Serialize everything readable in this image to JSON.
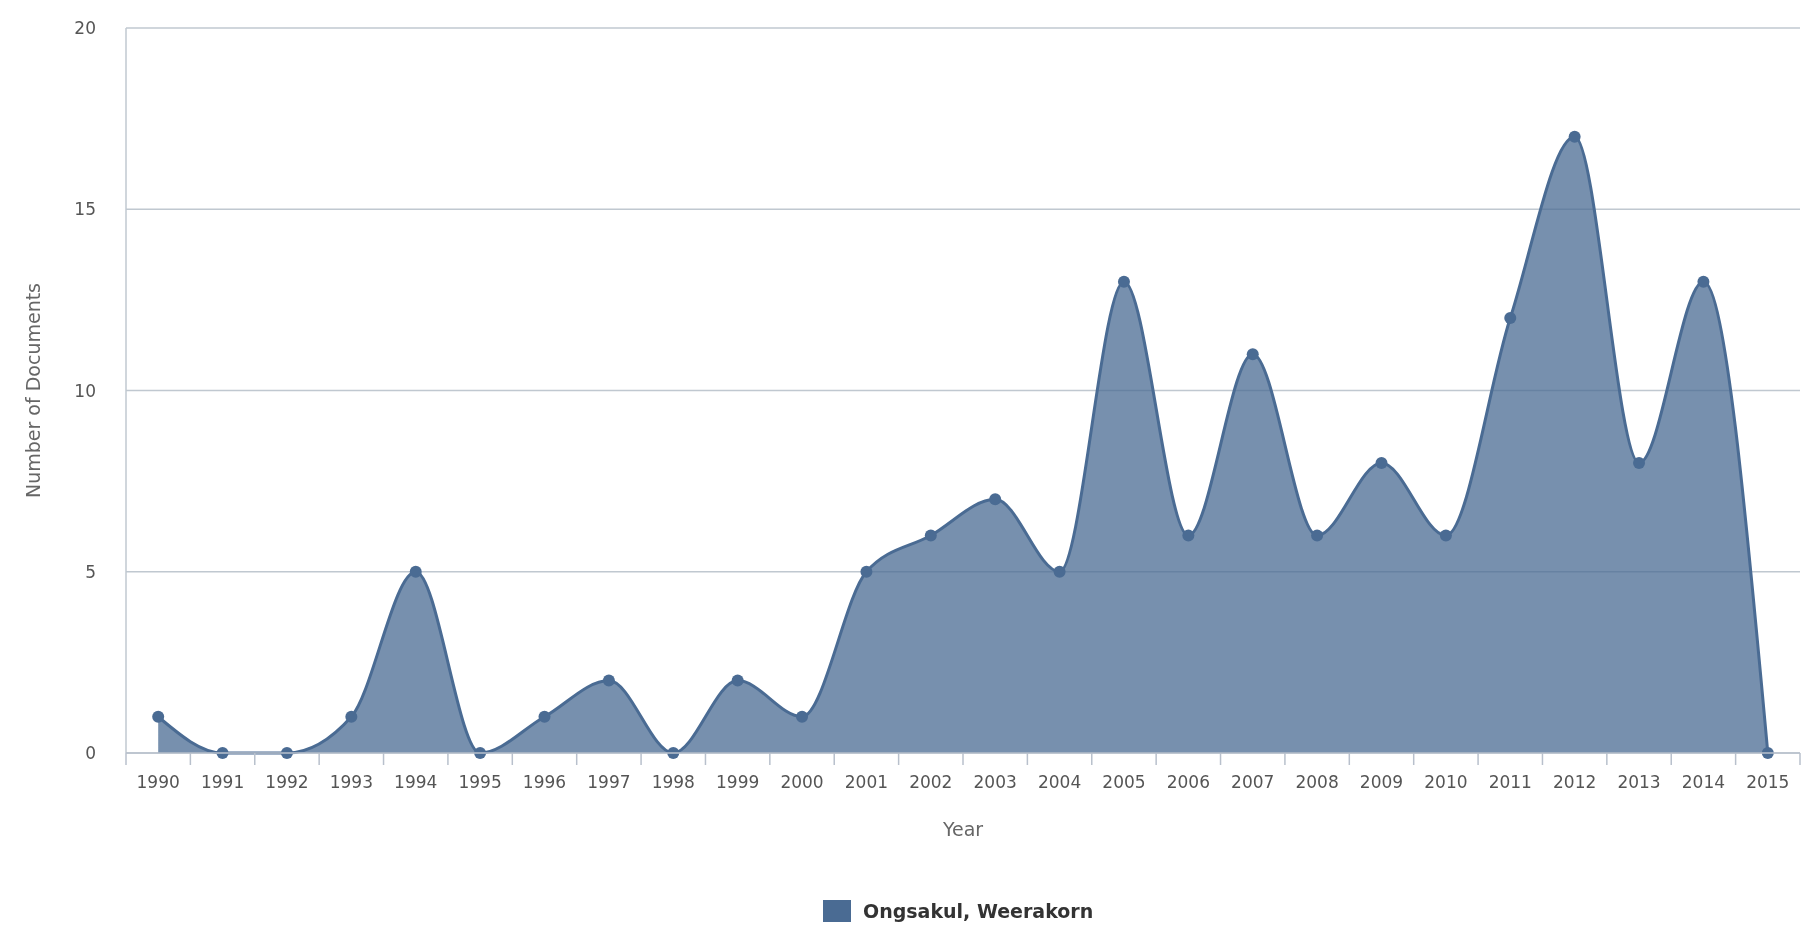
{
  "chart_data": {
    "type": "area",
    "xlabel": "Year",
    "ylabel": "Number of Documents",
    "categories": [
      "1990",
      "1991",
      "1992",
      "1993",
      "1994",
      "1995",
      "1996",
      "1997",
      "1998",
      "1999",
      "2000",
      "2001",
      "2002",
      "2003",
      "2004",
      "2005",
      "2006",
      "2007",
      "2008",
      "2009",
      "2010",
      "2011",
      "2012",
      "2013",
      "2014",
      "2015"
    ],
    "series": [
      {
        "name": "Ongsakul, Weerakorn",
        "color": "#4a6b93",
        "values": [
          1,
          0,
          0,
          1,
          5,
          0,
          1,
          2,
          0,
          2,
          1,
          5,
          6,
          7,
          5,
          13,
          6,
          11,
          6,
          8,
          6,
          12,
          17,
          8,
          13,
          0
        ]
      }
    ],
    "ylim": [
      0,
      20
    ],
    "yticks": [
      0,
      5,
      10,
      15,
      20
    ],
    "grid": "y",
    "legend": "bottom",
    "marker": "circle"
  }
}
